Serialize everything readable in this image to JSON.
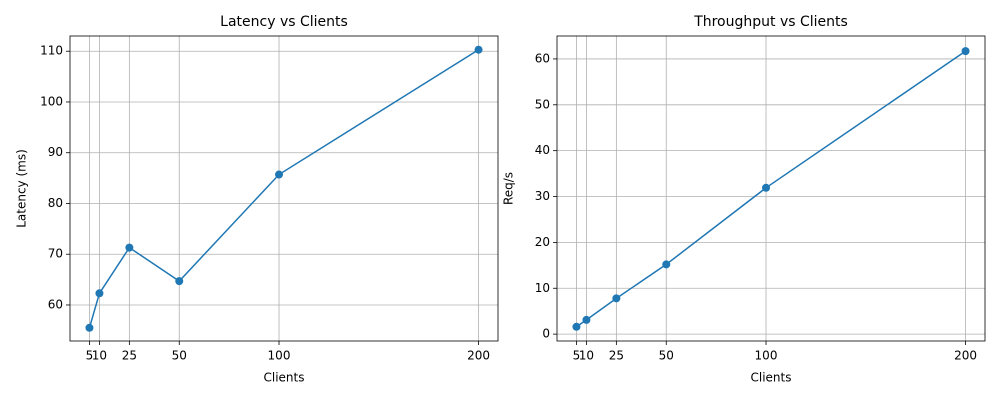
{
  "chart_data": [
    {
      "type": "line",
      "title": "Latency vs Clients",
      "x_label": "Clients",
      "y_label": "Latency (ms)",
      "x": [
        5,
        10,
        25,
        50,
        100,
        200
      ],
      "values": [
        55.5,
        62.3,
        71.3,
        64.7,
        85.7,
        110.3
      ],
      "color": "#1f77b4",
      "xlim": [
        -4.75,
        209.75
      ],
      "xticks": [
        5,
        10,
        25,
        50,
        100,
        200
      ],
      "ylim": [
        52.9,
        113
      ],
      "yticks": [
        60,
        70,
        80,
        90,
        100,
        110
      ],
      "grid": true
    },
    {
      "type": "line",
      "title": "Throughput vs Clients",
      "x_label": "Clients",
      "y_label": "Req/s",
      "x": [
        5,
        10,
        25,
        50,
        100,
        200
      ],
      "values": [
        1.6,
        3.1,
        7.8,
        15.2,
        31.9,
        61.7
      ],
      "color": "#1f77b4",
      "xlim": [
        -4.75,
        209.75
      ],
      "xticks": [
        5,
        10,
        25,
        50,
        100,
        200
      ],
      "ylim": [
        -1.5,
        65
      ],
      "yticks": [
        0,
        10,
        20,
        30,
        40,
        50,
        60
      ],
      "grid": true
    }
  ]
}
